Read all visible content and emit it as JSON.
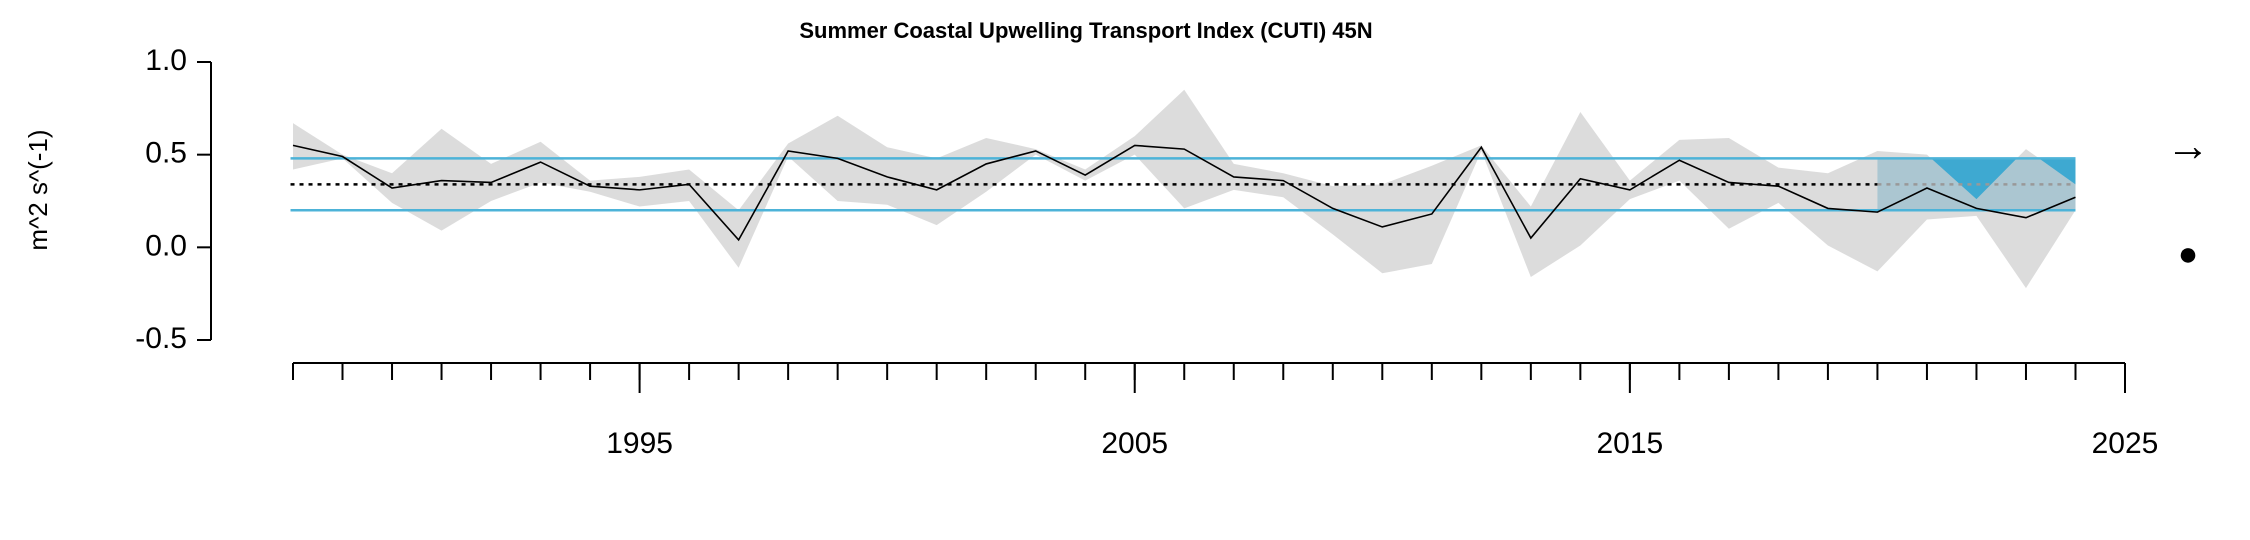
{
  "chart_data": {
    "type": "line",
    "title": "Summer Coastal Upwelling Transport Index (CUTI) 45N",
    "y_label": "m^2 s^(-1)",
    "x": [
      1988,
      1989,
      1990,
      1991,
      1992,
      1993,
      1994,
      1995,
      1996,
      1997,
      1998,
      1999,
      2000,
      2001,
      2002,
      2003,
      2004,
      2005,
      2006,
      2007,
      2008,
      2009,
      2010,
      2011,
      2012,
      2013,
      2014,
      2015,
      2016,
      2017,
      2018,
      2019,
      2020,
      2021,
      2022,
      2023,
      2024
    ],
    "series": [
      {
        "color": "#000000",
        "values": [
          0.55,
          0.49,
          0.32,
          0.36,
          0.35,
          0.46,
          0.33,
          0.31,
          0.34,
          0.04,
          0.52,
          0.48,
          0.38,
          0.31,
          0.45,
          0.52,
          0.39,
          0.55,
          0.53,
          0.38,
          0.36,
          0.21,
          0.11,
          0.18,
          0.54,
          0.05,
          0.37,
          0.31,
          0.47,
          0.35,
          0.33,
          0.21,
          0.19,
          0.32,
          0.21,
          0.16,
          0.27
        ],
        "upper": [
          0.67,
          0.5,
          0.4,
          0.64,
          0.45,
          0.57,
          0.36,
          0.38,
          0.42,
          0.2,
          0.56,
          0.71,
          0.54,
          0.48,
          0.59,
          0.53,
          0.42,
          0.6,
          0.85,
          0.45,
          0.4,
          0.33,
          0.34,
          0.44,
          0.55,
          0.22,
          0.73,
          0.36,
          0.58,
          0.59,
          0.43,
          0.4,
          0.52,
          0.5,
          0.26,
          0.53,
          0.34
        ],
        "lower": [
          0.42,
          0.48,
          0.24,
          0.09,
          0.25,
          0.35,
          0.3,
          0.22,
          0.25,
          -0.11,
          0.49,
          0.25,
          0.23,
          0.12,
          0.3,
          0.5,
          0.36,
          0.5,
          0.21,
          0.31,
          0.27,
          0.07,
          -0.14,
          -0.09,
          0.52,
          -0.16,
          0.01,
          0.26,
          0.36,
          0.1,
          0.24,
          0.01,
          -0.13,
          0.15,
          0.17,
          -0.22,
          0.2
        ],
        "band_color": "#d0d0d0"
      }
    ],
    "mean": 0.34,
    "sd_upper": 0.48,
    "sd_lower": 0.2,
    "sd_color": "#4db3d8",
    "recent_window": [
      2020,
      2024
    ],
    "recent_color": "#3ea9d1",
    "xlim": [
      1988,
      2025
    ],
    "xticks": [
      1995,
      2005,
      2015,
      2025
    ],
    "xminorticks": [
      1988,
      1989,
      1990,
      1991,
      1992,
      1993,
      1994,
      1995,
      1996,
      1997,
      1998,
      1999,
      2000,
      2001,
      2002,
      2003,
      2004,
      2005,
      2006,
      2007,
      2008,
      2009,
      2010,
      2011,
      2012,
      2013,
      2014,
      2015,
      2016,
      2017,
      2018,
      2019,
      2020,
      2021,
      2022,
      2023,
      2024,
      2025
    ],
    "ylim": [
      -0.5,
      1.0
    ],
    "yticks": [
      {
        "value": 1,
        "label": "1.0"
      },
      0.5,
      {
        "value": 0,
        "label": "0.0"
      },
      -0.5
    ],
    "trend_symbol": "→",
    "mean_symbol": "●"
  }
}
